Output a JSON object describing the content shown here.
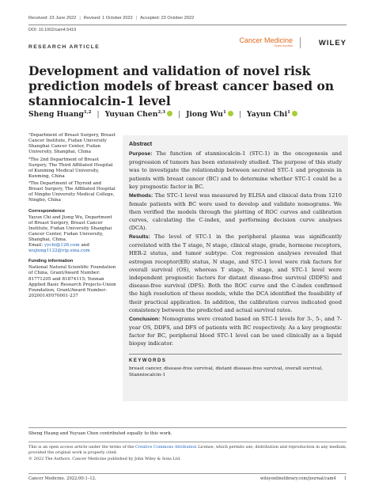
{
  "dates": {
    "received": "Received: 23 June 2022",
    "revised": "Revised: 1 October 2022",
    "accepted": "Accepted: 23 October 2022",
    "sep": "|"
  },
  "doi": "DOI: 10.1002/cam4.5419",
  "article_type": "RESEARCH ARTICLE",
  "journal": {
    "name": "Cancer Medicine",
    "sub": "Open Access",
    "publisher": "WILEY"
  },
  "title": "Development and validation of novel risk prediction models of breast cancer based on stanniocalcin-1 level",
  "authors": [
    {
      "name": "Sheng Huang",
      "sup": "1,2",
      "orcid": false
    },
    {
      "name": "Yuyuan Chen",
      "sup": "2,3",
      "orcid": true
    },
    {
      "name": "Jiong Wu",
      "sup": "1",
      "orcid": true
    },
    {
      "name": "Yayun Chi",
      "sup": "1",
      "orcid": true
    }
  ],
  "affiliations": [
    "¹Department of Breast Surgery, Breast Cancer Institute, Fudan University Shanghai Cancer Center, Fudan University, Shanghai, China",
    "²The 2nd Department of Breast Surgery, The Third Affiliated Hospital of Kunming Medical University, Kunming, China",
    "³The Department of Thyroid and Breast Surgery, The Affiliated Hospital of Ningbo University Medical College, Ningbo, China"
  ],
  "correspondence": {
    "title": "Correspondence",
    "text": "Yayun Chi and Jiong Wu, Department of Breast Surgery, Breast Cancer Institute, Fudan University Shanghai Cancer Center, Fudan University, Shanghai, China.",
    "email_label": "Email: ",
    "email1": "yychi@126.com",
    "and": " and",
    "email2": "wujiong1122@vip.sina.com"
  },
  "funding": {
    "title": "Funding information",
    "text": "National Natural Scientific Foundation of China, Grant/Award Number: 81771205 and 81874115; Yunnan Applied Basic Research Projects-Union Foundation, Grant/Award Number: 202001AY070001-237"
  },
  "abstract": {
    "heading": "Abstract",
    "purpose_label": "Purpose:",
    "purpose": " The function of stanniocalcin-1 (STC-1) in the oncogenesis and progression of tumors has been extensively studied. The purpose of this study was to investigate the relationship between secreted STC-1 and prognosis in patients with breast cancer (BC) and to determine whether STC-1 could be a key prognostic factor in BC.",
    "methods_label": "Methods:",
    "methods": " The STC-1 level was measured by ELISA and clinical data from 1210 female patients with BC were used to develop and validate nomograms. We then verified the models through the plotting of ROC curves and calibration curves, calculating the C-index, and performing decision curve analyses (DCA).",
    "results_label": "Results:",
    "results": " The level of STC-1 in the peripheral plasma was significantly correlated with the T stage, N stage, clinical stage, grade, hormone receptors, HER-2 status, and tumor subtype. Cox regression analyses revealed that estrogen receptor(ER) status, N stage, and STC-1 level were risk factors for overall survival (OS), whereas T stage, N stage, and STC-1 level were independent prognostic factors for distant disease-free survival (DDFS) and disease-free survival (DFS). Both the ROC curve and the C-index confirmed the high resolution of these models, while the DCA identified the feasibility of their practical application. In addition, the calibration curves indicated good consistency between the predicted and actual survival rates.",
    "conclusion_label": "Conclusion:",
    "conclusion": " Nomograms were created based on STC-1 levels for 3-, 5-, and 7-year OS, DDFS, and DFS of patients with BC respectively. As a key prognostic factor for BC, peripheral blood STC-1 level can be used clinically as a liquid biopsy indicator."
  },
  "keywords": {
    "heading": "KEYWORDS",
    "text": "breast cancer, disease-free survival, distant disease-free survival, overall survival, Stanniocalcin-1"
  },
  "equal_contribution": "Sheng Huang and Yuyuan Chen contributed equally to this work.",
  "license": {
    "part1": "This is an open access article under the terms of the ",
    "link": "Creative Commons Attribution",
    "part2": " License, which permits use, distribution and reproduction in any medium, provided the original work is properly cited.",
    "copyright": "© 2022 The Authors. Cancer Medicine published by John Wiley & Sons Ltd."
  },
  "footer": {
    "left": "Cancer Medicine. 2022;00:1–12.",
    "url": "wileyonlinelibrary.com/journal/cam4",
    "page": "1"
  }
}
